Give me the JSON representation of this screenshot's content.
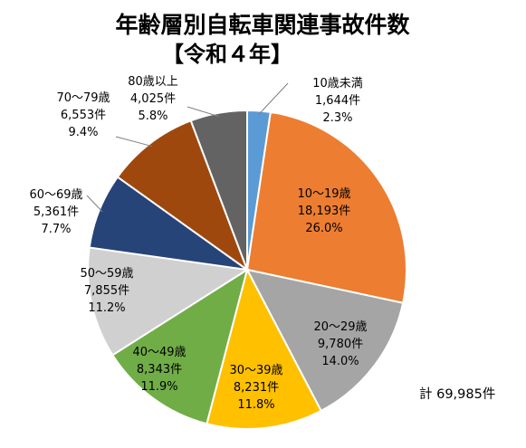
{
  "chart_data": {
    "type": "pie",
    "title": "年齢層別自転車関連事故件数",
    "subtitle": "【令和４年】",
    "total_label": "計 69,985件",
    "slices": [
      {
        "name": "10歳未満",
        "count_label": "1,644件",
        "pct_label": "2.3%",
        "value": 1644,
        "color": "#5B9BD5"
      },
      {
        "name": "10～19歳",
        "count_label": "18,193件",
        "pct_label": "26.0%",
        "value": 18193,
        "color": "#ED7D31"
      },
      {
        "name": "20～29歳",
        "count_label": "9,780件",
        "pct_label": "14.0%",
        "value": 9780,
        "color": "#A5A5A5"
      },
      {
        "name": "30～39歳",
        "count_label": "8,231件",
        "pct_label": "11.8%",
        "value": 8231,
        "color": "#FFC000"
      },
      {
        "name": "40～49歳",
        "count_label": "8,343件",
        "pct_label": "11.9%",
        "value": 8343,
        "color": "#70AD47"
      },
      {
        "name": "50～59歳",
        "count_label": "7,855件",
        "pct_label": "11.2%",
        "value": 7855,
        "color": "#D0D0D0"
      },
      {
        "name": "60～69歳",
        "count_label": "5,361件",
        "pct_label": "7.7%",
        "value": 5361,
        "color": "#264478"
      },
      {
        "name": "70～79歳",
        "count_label": "6,553件",
        "pct_label": "9.4%",
        "value": 6553,
        "color": "#9E480E"
      },
      {
        "name": "80歳以上",
        "count_label": "4,025件",
        "pct_label": "5.8%",
        "value": 4025,
        "color": "#636363"
      }
    ]
  }
}
